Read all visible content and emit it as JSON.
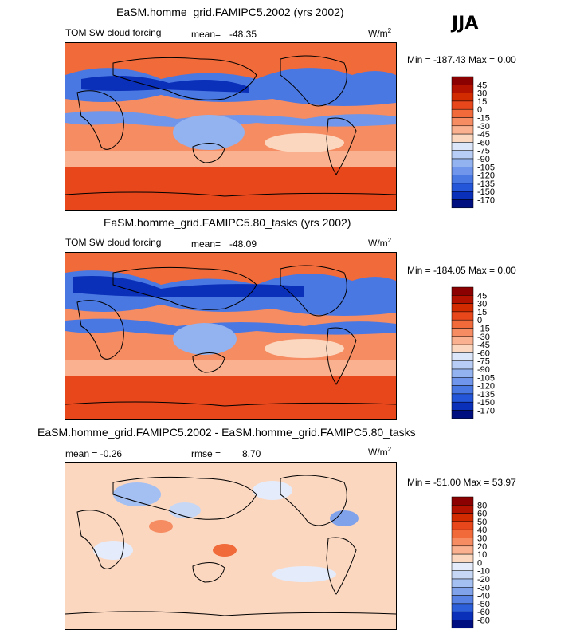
{
  "season": "JJA",
  "panels": [
    {
      "title": "EaSM.homme_grid.FAMIPC5.2002 (yrs 2002)",
      "left_label": "TOM SW cloud forcing",
      "stat_label": "mean=",
      "stat_value": "-48.35",
      "units": "W/m",
      "units_exp": "2",
      "minmax": "Min = -187.43 Max =    0.00",
      "colorbar": {
        "levels": [
          "45",
          "30",
          "15",
          "0",
          "-15",
          "-30",
          "-45",
          "-60",
          "-75",
          "-90",
          "-105",
          "-120",
          "-135",
          "-150",
          "-170"
        ],
        "colors": [
          "#8b0000",
          "#b31200",
          "#d32b00",
          "#e8471c",
          "#f06a3a",
          "#f58c62",
          "#f9b18f",
          "#fcd7c0",
          "#dbe6fa",
          "#b7cdf5",
          "#93b2f0",
          "#6f96ea",
          "#4a78e3",
          "#2356d9",
          "#0a2fb8",
          "#000f80"
        ]
      }
    },
    {
      "title": "EaSM.homme_grid.FAMIPC5.80_tasks (yrs 2002)",
      "left_label": "TOM SW cloud forcing",
      "stat_label": "mean=",
      "stat_value": "-48.09",
      "units": "W/m",
      "units_exp": "2",
      "minmax": "Min = -184.05 Max =    0.00",
      "colorbar": {
        "levels": [
          "45",
          "30",
          "15",
          "0",
          "-15",
          "-30",
          "-45",
          "-60",
          "-75",
          "-90",
          "-105",
          "-120",
          "-135",
          "-150",
          "-170"
        ],
        "colors": [
          "#8b0000",
          "#b31200",
          "#d32b00",
          "#e8471c",
          "#f06a3a",
          "#f58c62",
          "#f9b18f",
          "#fcd7c0",
          "#dbe6fa",
          "#b7cdf5",
          "#93b2f0",
          "#6f96ea",
          "#4a78e3",
          "#2356d9",
          "#0a2fb8",
          "#000f80"
        ]
      }
    },
    {
      "title": "EaSM.homme_grid.FAMIPC5.2002 - EaSM.homme_grid.FAMIPC5.80_tasks",
      "left_label": "mean =   -0.26",
      "stat_label": "rmse =",
      "stat_value": "8.70",
      "units": "W/m",
      "units_exp": "2",
      "minmax": "Min = -51.00 Max =  53.97",
      "colorbar": {
        "levels": [
          "80",
          "60",
          "50",
          "40",
          "30",
          "20",
          "10",
          "0",
          "-10",
          "-20",
          "-30",
          "-40",
          "-50",
          "-60",
          "-80"
        ],
        "colors": [
          "#8b0000",
          "#b31200",
          "#d32b00",
          "#e8471c",
          "#f06a3a",
          "#f58c62",
          "#f9b18f",
          "#fcd7c0",
          "#e4ecfb",
          "#c6d7f6",
          "#a4bff1",
          "#7fa2eb",
          "#5883e4",
          "#2d5fda",
          "#0a2fb8",
          "#000f80"
        ]
      }
    }
  ],
  "chart_data": [
    {
      "type": "heatmap",
      "title": "EaSM.homme_grid.FAMIPC5.2002 (yrs 2002)",
      "variable": "TOM SW cloud forcing",
      "mean": -48.35,
      "min": -187.43,
      "max": 0.0,
      "units": "W/m2",
      "levels": [
        45,
        30,
        15,
        0,
        -15,
        -30,
        -45,
        -60,
        -75,
        -90,
        -105,
        -120,
        -135,
        -150,
        -170
      ]
    },
    {
      "type": "heatmap",
      "title": "EaSM.homme_grid.FAMIPC5.80_tasks (yrs 2002)",
      "variable": "TOM SW cloud forcing",
      "mean": -48.09,
      "min": -184.05,
      "max": 0.0,
      "units": "W/m2",
      "levels": [
        45,
        30,
        15,
        0,
        -15,
        -30,
        -45,
        -60,
        -75,
        -90,
        -105,
        -120,
        -135,
        -150,
        -170
      ]
    },
    {
      "type": "heatmap",
      "title": "EaSM.homme_grid.FAMIPC5.2002 - EaSM.homme_grid.FAMIPC5.80_tasks",
      "mean": -0.26,
      "rmse": 8.7,
      "min": -51.0,
      "max": 53.97,
      "units": "W/m2",
      "levels": [
        80,
        60,
        50,
        40,
        30,
        20,
        10,
        0,
        -10,
        -20,
        -30,
        -40,
        -50,
        -60,
        -80
      ]
    }
  ]
}
